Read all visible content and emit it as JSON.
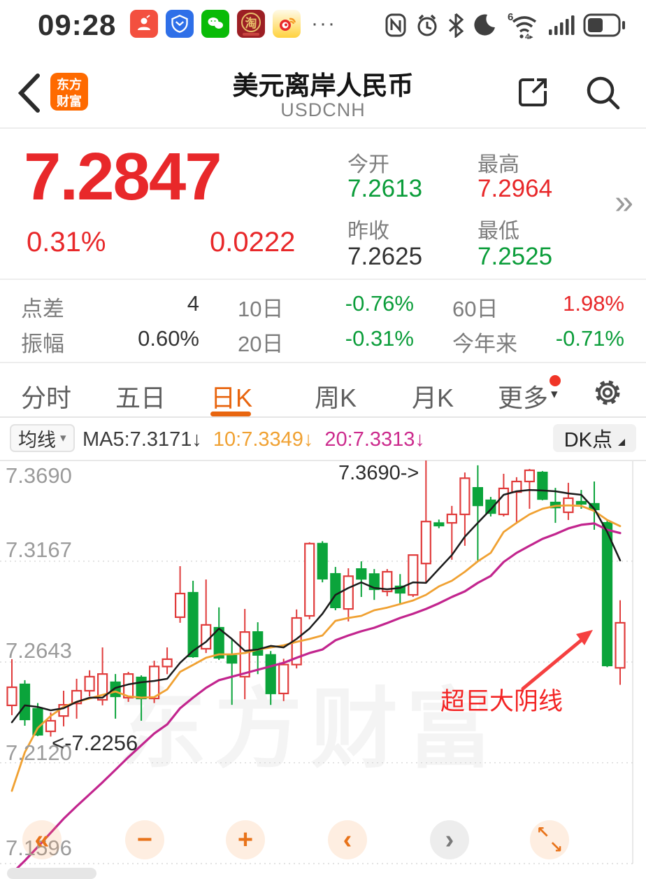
{
  "status_bar": {
    "time": "09:28",
    "app_icons": [
      "contacts-call",
      "tencent-shield",
      "wechat",
      "taobao",
      "weibo"
    ],
    "overflow_glyph": "···",
    "system_icons": [
      "nfc",
      "alarm-clock",
      "bluetooth",
      "moon-dnd",
      "wifi6",
      "signal-bars",
      "battery"
    ],
    "wifi_superscript": "6",
    "wifi_sub": "4",
    "nfc_letter": "N",
    "battery_percent_visual": 45
  },
  "header": {
    "logo_line1": "东方",
    "logo_line2": "财富",
    "title": "美元离岸人民币",
    "symbol": "USDCNH"
  },
  "quote": {
    "price": "7.2847",
    "change_pct": "0.31%",
    "change_abs": "0.0222",
    "open_label": "今开",
    "open": "7.2613",
    "high_label": "最高",
    "high": "7.2964",
    "prev_close_label": "昨收",
    "prev_close": "7.2625",
    "low_label": "最低",
    "low": "7.2525",
    "more_glyph": "»"
  },
  "stats": {
    "spread_label": "点差",
    "spread_value": "4",
    "d10_label": "10日",
    "d10_value": "-0.76%",
    "d60_label": "60日",
    "d60_value": "1.98%",
    "amp_label": "振幅",
    "amp_value": "0.60%",
    "d20_label": "20日",
    "d20_value": "-0.31%",
    "ytd_label": "今年来",
    "ytd_value": "-0.71%"
  },
  "tabs": {
    "items": [
      {
        "label": "分时"
      },
      {
        "label": "五日"
      },
      {
        "label": "日K"
      },
      {
        "label": "周K"
      },
      {
        "label": "月K"
      }
    ],
    "more_label": "更多",
    "more_caret": "▾",
    "active": "日K"
  },
  "ma_bar": {
    "group_label": "均线",
    "group_caret": "▾",
    "ma5_text": "MA5:7.3171↓",
    "ma10_text": "10:7.3349↓",
    "ma20_text": "20:7.3313↓",
    "dk_button": "DK点"
  },
  "chart_data": {
    "type": "candlestick",
    "symbol": "USDCNH",
    "period": "日K",
    "ylim": [
      7.1596,
      7.369
    ],
    "y_axis_labels": [
      "7.3690",
      "7.3167",
      "7.2643",
      "7.2120",
      "7.1596"
    ],
    "gridlines": [
      7.3167,
      7.2643,
      7.212
    ],
    "legend": [
      "MA5",
      "MA10",
      "MA20"
    ],
    "colors": {
      "up": "#e03b3b",
      "down": "#0ba43b",
      "ma5": "#1b1b1b",
      "ma10": "#f0a132",
      "ma20": "#c2258e",
      "accent": "#e8650f"
    },
    "annotations": {
      "high": "7.3690->",
      "low": "<-7.2256",
      "crash": "超巨大阴线"
    },
    "watermark": "东方财富",
    "candles": [
      [
        7.2418,
        7.2658,
        7.2367,
        7.2512
      ],
      [
        7.2527,
        7.2549,
        7.2312,
        7.2345
      ],
      [
        7.24,
        7.243,
        7.2258,
        7.2265
      ],
      [
        7.2283,
        7.2381,
        7.2256,
        7.2338
      ],
      [
        7.2363,
        7.2494,
        7.2309,
        7.2421
      ],
      [
        7.2428,
        7.2556,
        7.2349,
        7.2494
      ],
      [
        7.2494,
        7.26,
        7.2465,
        7.2567
      ],
      [
        7.2447,
        7.2719,
        7.2418,
        7.2581
      ],
      [
        7.2538,
        7.2581,
        7.2349,
        7.2465
      ],
      [
        7.2458,
        7.2592,
        7.2436,
        7.2581
      ],
      [
        7.2563,
        7.2574,
        7.2338,
        7.2454
      ],
      [
        7.2454,
        7.265,
        7.243,
        7.262
      ],
      [
        7.262,
        7.2719,
        7.258,
        7.2658
      ],
      [
        7.2876,
        7.3141,
        7.2847,
        7.2999
      ],
      [
        7.3003,
        7.3065,
        7.2665,
        7.2672
      ],
      [
        7.2712,
        7.3072,
        7.269,
        7.2836
      ],
      [
        7.2821,
        7.2927,
        7.2654,
        7.2665
      ],
      [
        7.2676,
        7.2763,
        7.2421,
        7.2639
      ],
      [
        7.2567,
        7.2919,
        7.245,
        7.2799
      ],
      [
        7.2799,
        7.285,
        7.258,
        7.268
      ],
      [
        7.268,
        7.27,
        7.242,
        7.248
      ],
      [
        7.248,
        7.266,
        7.244,
        7.263
      ],
      [
        7.263,
        7.2916,
        7.261,
        7.2872
      ],
      [
        7.2883,
        7.3265,
        7.2865,
        7.3258
      ],
      [
        7.3258,
        7.3271,
        7.3057,
        7.3076
      ],
      [
        7.3101,
        7.3137,
        7.2912,
        7.2927
      ],
      [
        7.2919,
        7.313,
        7.2854,
        7.3089
      ],
      [
        7.3126,
        7.3166,
        7.2981,
        7.3075
      ],
      [
        7.31,
        7.3126,
        7.2966,
        7.3021
      ],
      [
        7.301,
        7.3126,
        7.2985,
        7.3112
      ],
      [
        7.3036,
        7.31,
        7.2948,
        7.3003
      ],
      [
        7.2992,
        7.3202,
        7.2981,
        7.3199
      ],
      [
        7.3155,
        7.369,
        7.3057,
        7.3373
      ],
      [
        7.3365,
        7.3383,
        7.3338,
        7.3352
      ],
      [
        7.3366,
        7.3454,
        7.3174,
        7.341
      ],
      [
        7.341,
        7.3628,
        7.3247,
        7.3598
      ],
      [
        7.3548,
        7.3665,
        7.3166,
        7.3457
      ],
      [
        7.3483,
        7.3501,
        7.3399,
        7.3417
      ],
      [
        7.341,
        7.3621,
        7.3399,
        7.3545
      ],
      [
        7.3526,
        7.3603,
        7.3366,
        7.3581
      ],
      [
        7.3581,
        7.3646,
        7.3439,
        7.3639
      ],
      [
        7.3628,
        7.3635,
        7.3483,
        7.349
      ],
      [
        7.3472,
        7.3548,
        7.3366,
        7.3446
      ],
      [
        7.3421,
        7.3574,
        7.3381,
        7.3494
      ],
      [
        7.3476,
        7.3537,
        7.3439,
        7.3465
      ],
      [
        7.3465,
        7.3581,
        7.333,
        7.3436
      ],
      [
        7.3366,
        7.3381,
        7.2617,
        7.2625
      ],
      [
        7.2613,
        7.2964,
        7.2525,
        7.2847
      ]
    ],
    "ma5": [
      7.233,
      7.2418,
      7.241,
      7.2392,
      7.2403,
      7.2436,
      7.2458,
      7.2458,
      7.2509,
      7.2527,
      7.2538,
      7.2545,
      7.2556,
      7.2639,
      7.2701,
      7.2748,
      7.2817,
      7.2763,
      7.2701,
      7.2708,
      7.2727,
      7.2719,
      7.2763,
      7.2817,
      7.2894,
      7.2992,
      7.3028,
      7.3057,
      7.3028,
      7.3021,
      7.3028,
      7.3057,
      7.3054,
      7.3127,
      7.3199,
      7.3294,
      7.3366,
      7.3436,
      7.3512,
      7.353,
      7.3537,
      7.3534,
      7.353,
      7.3519,
      7.3512,
      7.3439,
      7.3319,
      7.3171
    ],
    "ma10": [
      7.1974,
      7.2174,
      7.2301,
      7.2363,
      7.241,
      7.2436,
      7.2454,
      7.2472,
      7.249,
      7.2465,
      7.2458,
      7.2461,
      7.2501,
      7.2592,
      7.2628,
      7.2665,
      7.2683,
      7.2683,
      7.269,
      7.2708,
      7.2719,
      7.273,
      7.2748,
      7.2763,
      7.2781,
      7.2857,
      7.2872,
      7.2883,
      7.2912,
      7.2926,
      7.2944,
      7.2963,
      7.2992,
      7.3036,
      7.3065,
      7.3112,
      7.3166,
      7.321,
      7.3319,
      7.3366,
      7.341,
      7.3439,
      7.3454,
      7.3457,
      7.3454,
      7.3428,
      7.3381,
      7.3349
    ],
    "ma20": [
      7.1545,
      7.1611,
      7.1683,
      7.1756,
      7.1829,
      7.1894,
      7.1956,
      7.2018,
      7.2083,
      7.2149,
      7.221,
      7.2272,
      7.2319,
      7.2403,
      7.2458,
      7.2509,
      7.2549,
      7.2567,
      7.2585,
      7.2603,
      7.2621,
      7.2639,
      7.2665,
      7.269,
      7.2708,
      7.2756,
      7.2781,
      7.2803,
      7.2821,
      7.2846,
      7.2872,
      7.2894,
      7.2919,
      7.2948,
      7.2981,
      7.301,
      7.3054,
      7.309,
      7.3163,
      7.321,
      7.3247,
      7.3283,
      7.3308,
      7.3337,
      7.3356,
      7.3363,
      7.333,
      7.3313
    ]
  },
  "zoom_controls": {
    "collapse": "«",
    "zoom_out": "−",
    "zoom_in": "+",
    "pan_left": "‹",
    "pan_right": "›",
    "expand_nw": "↖",
    "expand_se": "↘"
  }
}
